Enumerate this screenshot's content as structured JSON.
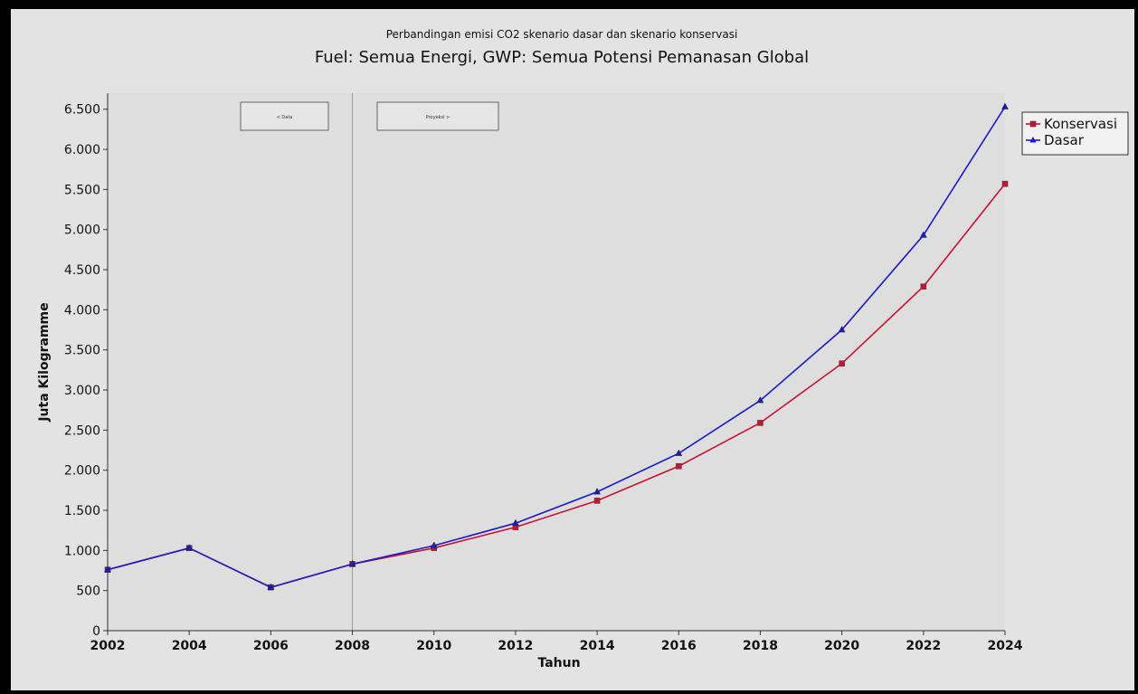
{
  "chart_data": {
    "type": "line",
    "title": "Fuel: Semua Energi, GWP: Semua Potensi Pemanasan Global",
    "subtitle": "Perbandingan emisi CO2 skenario dasar dan skenario konservasi",
    "xlabel": "Tahun",
    "ylabel": "Juta Kilogramme",
    "x": [
      2002,
      2004,
      2006,
      2008,
      2010,
      2012,
      2014,
      2016,
      2018,
      2020,
      2022,
      2024
    ],
    "xlim": [
      2002,
      2024
    ],
    "ylim": [
      0,
      6700
    ],
    "yticks": [
      0,
      500,
      1000,
      1500,
      2000,
      2500,
      3000,
      3500,
      4000,
      4500,
      5000,
      5500,
      6000,
      6500
    ],
    "ytick_labels": [
      "0",
      "500",
      "1.000",
      "1.500",
      "2.000",
      "2.500",
      "3.000",
      "3.500",
      "4.000",
      "4.500",
      "5.000",
      "5.500",
      "6.000",
      "6.500"
    ],
    "xtick_labels": [
      "2002",
      "2004",
      "2006",
      "2008",
      "2010",
      "2012",
      "2014",
      "2016",
      "2018",
      "2020",
      "2022",
      "2024"
    ],
    "grid": false,
    "legend_position": "right",
    "divider_x": 2008,
    "region_labels": [
      "< Data",
      "Proyeksi >"
    ],
    "series": [
      {
        "name": "Konservasi",
        "color": "#cc1133",
        "marker": "square",
        "values": [
          760,
          1030,
          540,
          830,
          1030,
          1290,
          1620,
          2050,
          2590,
          3330,
          4290,
          5570
        ]
      },
      {
        "name": "Dasar",
        "color": "#1a1acc",
        "marker": "triangle",
        "values": [
          760,
          1030,
          540,
          830,
          1060,
          1340,
          1730,
          2210,
          2870,
          3750,
          4930,
          6530
        ]
      }
    ]
  }
}
